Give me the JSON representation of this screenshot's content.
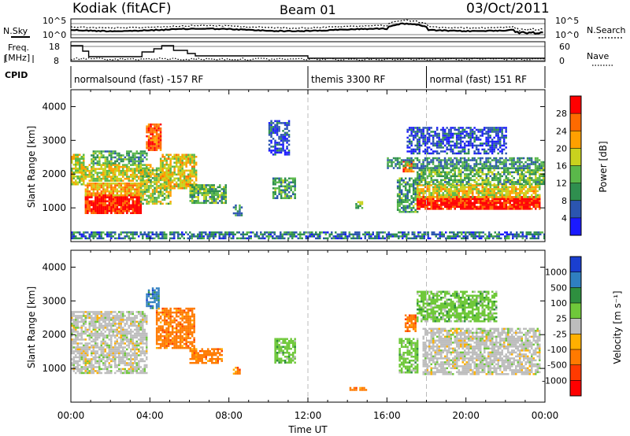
{
  "header": {
    "radar": "Kodiak (fitACF)",
    "beam": "Beam 01",
    "date": "03/Oct/2011"
  },
  "top_panels": {
    "nsky_label": "N.Sky",
    "nsearch_label": "N.Search",
    "freq_label_1": "Freq.",
    "freq_label_2": "[MHz]",
    "nave_label": "Nave",
    "cpid_label": "CPID",
    "noise_ticks_left": [
      "10^5",
      "10^0"
    ],
    "noise_ticks_right": [
      "10^5",
      "10^0"
    ],
    "freq_ticks": [
      "18",
      "8"
    ],
    "nave_ticks": [
      "60",
      "0"
    ],
    "cpid_segments": [
      {
        "label": "normalsound (fast) -157 RF",
        "start_hour": 0
      },
      {
        "label": "themis 3300 RF",
        "start_hour": 12
      },
      {
        "label": "normal (fast) 151 RF",
        "start_hour": 18
      }
    ]
  },
  "chart_data": [
    {
      "type": "heatmap",
      "title": "",
      "xlabel": "Time UT",
      "ylabel": "Slant Range [km]",
      "xlim": [
        0,
        24
      ],
      "ylim": [
        0,
        4500
      ],
      "x_ticks": [
        "00:00",
        "04:00",
        "08:00",
        "12:00",
        "16:00",
        "20:00",
        "00:00"
      ],
      "y_ticks": [
        1000,
        2000,
        3000,
        4000
      ],
      "colorbar": {
        "label": "Power [dB]",
        "ticks": [
          "4",
          "8",
          "12",
          "16",
          "20",
          "24",
          "28"
        ],
        "colors": [
          "#1a1aff",
          "#2b55b0",
          "#2f8f4f",
          "#5ab84a",
          "#c9d21e",
          "#ffa000",
          "#ff6a00",
          "#ff0000"
        ]
      },
      "regions": [
        {
          "t0": 0.0,
          "t1": 0.6,
          "r0": 1700,
          "r1": 2600,
          "level": 0.55
        },
        {
          "t0": 0.7,
          "t1": 3.5,
          "r0": 850,
          "r1": 1400,
          "level": 0.95
        },
        {
          "t0": 0.7,
          "t1": 3.5,
          "r0": 1400,
          "r1": 1750,
          "level": 0.7
        },
        {
          "t0": 0.5,
          "t1": 4.0,
          "r0": 1800,
          "r1": 2300,
          "level": 0.55
        },
        {
          "t0": 1.0,
          "t1": 3.8,
          "r0": 2300,
          "r1": 2700,
          "level": 0.35
        },
        {
          "t0": 3.8,
          "t1": 4.5,
          "r0": 2700,
          "r1": 3500,
          "level": 0.8
        },
        {
          "t0": 3.5,
          "t1": 5.0,
          "r0": 1100,
          "r1": 2200,
          "level": 0.5
        },
        {
          "t0": 4.5,
          "t1": 6.3,
          "r0": 1600,
          "r1": 2600,
          "level": 0.6
        },
        {
          "t0": 6.0,
          "t1": 7.8,
          "r0": 1150,
          "r1": 1700,
          "level": 0.4
        },
        {
          "t0": 8.2,
          "t1": 8.6,
          "r0": 800,
          "r1": 1100,
          "level": 0.3
        },
        {
          "t0": 10.2,
          "t1": 11.3,
          "r0": 1300,
          "r1": 1900,
          "level": 0.35
        },
        {
          "t0": 10.0,
          "t1": 11.0,
          "r0": 2600,
          "r1": 3600,
          "level": 0.15
        },
        {
          "t0": 14.4,
          "t1": 14.7,
          "r0": 1000,
          "r1": 1200,
          "level": 0.45
        },
        {
          "t0": 16.5,
          "t1": 17.5,
          "r0": 900,
          "r1": 1900,
          "level": 0.35
        },
        {
          "t0": 16.8,
          "t1": 17.3,
          "r0": 2100,
          "r1": 2400,
          "level": 0.8
        },
        {
          "t0": 17.5,
          "t1": 23.7,
          "r0": 950,
          "r1": 1350,
          "level": 0.95
        },
        {
          "t0": 17.5,
          "t1": 23.7,
          "r0": 1350,
          "r1": 1700,
          "level": 0.6
        },
        {
          "t0": 17.5,
          "t1": 23.9,
          "r0": 1700,
          "r1": 2200,
          "level": 0.4
        },
        {
          "t0": 16.0,
          "t1": 23.9,
          "r0": 2200,
          "r1": 2500,
          "level": 0.3
        },
        {
          "t0": 17.0,
          "t1": 22.0,
          "r0": 2600,
          "r1": 3400,
          "level": 0.15
        },
        {
          "t0": 0.0,
          "t1": 24.0,
          "r0": 80,
          "r1": 300,
          "level": 0.25
        }
      ]
    },
    {
      "type": "heatmap",
      "title": "",
      "xlabel": "Time UT",
      "ylabel": "Slant Range [km]",
      "xlim": [
        0,
        24
      ],
      "ylim": [
        0,
        4500
      ],
      "x_ticks": [
        "00:00",
        "04:00",
        "08:00",
        "12:00",
        "16:00",
        "20:00",
        "00:00"
      ],
      "y_ticks": [
        1000,
        2000,
        3000,
        4000
      ],
      "colorbar": {
        "label": "Velocity [m s⁻¹]",
        "ticks": [
          "1000",
          "500",
          "100",
          "25",
          "-25",
          "-100",
          "-500",
          "-1000"
        ],
        "colors": [
          "#1a3fd0",
          "#2f7fc0",
          "#2e8f3f",
          "#6fc83a",
          "#bdbdbd",
          "#ffb000",
          "#ff7a00",
          "#ff3a00",
          "#ff0000"
        ]
      },
      "regions": [
        {
          "t0": 0.0,
          "t1": 3.8,
          "r0": 850,
          "r1": 2700,
          "vel": "-25..25"
        },
        {
          "t0": 3.8,
          "t1": 4.4,
          "r0": 2800,
          "r1": 3400,
          "vel": "100..500"
        },
        {
          "t0": 4.3,
          "t1": 6.2,
          "r0": 1600,
          "r1": 2800,
          "vel": "-500..-100"
        },
        {
          "t0": 6.0,
          "t1": 7.6,
          "r0": 1150,
          "r1": 1600,
          "vel": "-500..-100"
        },
        {
          "t0": 8.2,
          "t1": 8.5,
          "r0": 850,
          "r1": 1050,
          "vel": "-500..-100"
        },
        {
          "t0": 10.3,
          "t1": 11.3,
          "r0": 1200,
          "r1": 1900,
          "vel": "25..100"
        },
        {
          "t0": 14.1,
          "t1": 14.9,
          "r0": 350,
          "r1": 450,
          "vel": "-500..-100"
        },
        {
          "t0": 16.6,
          "t1": 17.5,
          "r0": 900,
          "r1": 1900,
          "vel": "25..100"
        },
        {
          "t0": 16.9,
          "t1": 17.4,
          "r0": 2100,
          "r1": 2600,
          "vel": "-500..-100"
        },
        {
          "t0": 17.8,
          "t1": 23.7,
          "r0": 850,
          "r1": 2200,
          "vel": "-25..25"
        },
        {
          "t0": 17.5,
          "t1": 21.5,
          "r0": 2400,
          "r1": 3300,
          "vel": "25..100"
        }
      ]
    }
  ]
}
